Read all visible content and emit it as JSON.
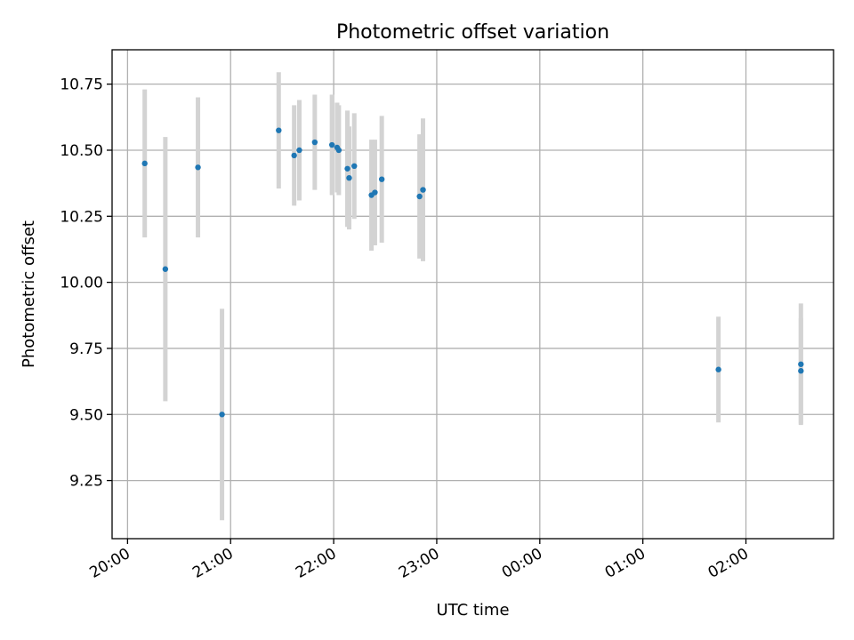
{
  "chart_data": {
    "type": "scatter",
    "title": "Photometric offset variation",
    "xlabel": "UTC time",
    "ylabel": "Photometric offset",
    "xlim": [
      "19:51",
      "02:51"
    ],
    "ylim": [
      9.03,
      10.88
    ],
    "grid": true,
    "x_ticks": [
      {
        "label": "20:00",
        "time": "20:00"
      },
      {
        "label": "21:00",
        "time": "21:00"
      },
      {
        "label": "22:00",
        "time": "22:00"
      },
      {
        "label": "23:00",
        "time": "23:00"
      },
      {
        "label": "00:00",
        "time": "00:00"
      },
      {
        "label": "01:00",
        "time": "01:00"
      },
      {
        "label": "02:00",
        "time": "02:00"
      }
    ],
    "y_ticks": [
      {
        "label": "9.25",
        "value": 9.25
      },
      {
        "label": "9.50",
        "value": 9.5
      },
      {
        "label": "9.75",
        "value": 9.75
      },
      {
        "label": "10.00",
        "value": 10.0
      },
      {
        "label": "10.25",
        "value": 10.25
      },
      {
        "label": "10.50",
        "value": 10.5
      },
      {
        "label": "10.75",
        "value": 10.75
      }
    ],
    "colors": {
      "point": "#1f77b4",
      "errorbar": "#d3d3d3",
      "grid": "#b0b0b0"
    },
    "points": [
      {
        "time": "20:10",
        "y": 10.45,
        "err": 0.28
      },
      {
        "time": "20:22",
        "y": 10.05,
        "err": 0.5
      },
      {
        "time": "20:41",
        "y": 10.435,
        "err": 0.265
      },
      {
        "time": "20:55",
        "y": 9.5,
        "err": 0.4
      },
      {
        "time": "21:28",
        "y": 10.575,
        "err": 0.22
      },
      {
        "time": "21:37",
        "y": 10.48,
        "err": 0.19
      },
      {
        "time": "21:40",
        "y": 10.5,
        "err": 0.19
      },
      {
        "time": "21:49",
        "y": 10.53,
        "err": 0.18
      },
      {
        "time": "21:59",
        "y": 10.52,
        "err": 0.19
      },
      {
        "time": "22:02",
        "y": 10.51,
        "err": 0.17
      },
      {
        "time": "22:03",
        "y": 10.5,
        "err": 0.17
      },
      {
        "time": "22:08",
        "y": 10.43,
        "err": 0.22
      },
      {
        "time": "22:09",
        "y": 10.395,
        "err": 0.195
      },
      {
        "time": "22:12",
        "y": 10.44,
        "err": 0.2
      },
      {
        "time": "22:22",
        "y": 10.33,
        "err": 0.21
      },
      {
        "time": "22:24",
        "y": 10.34,
        "err": 0.2
      },
      {
        "time": "22:28",
        "y": 10.39,
        "err": 0.24
      },
      {
        "time": "22:50",
        "y": 10.325,
        "err": 0.235
      },
      {
        "time": "22:52",
        "y": 10.35,
        "err": 0.27
      },
      {
        "time": "01:44",
        "y": 9.67,
        "err": 0.2
      },
      {
        "time": "02:32",
        "y": 9.665,
        "err": 0.2
      },
      {
        "time": "02:32",
        "y": 9.69,
        "err": 0.23
      }
    ]
  }
}
